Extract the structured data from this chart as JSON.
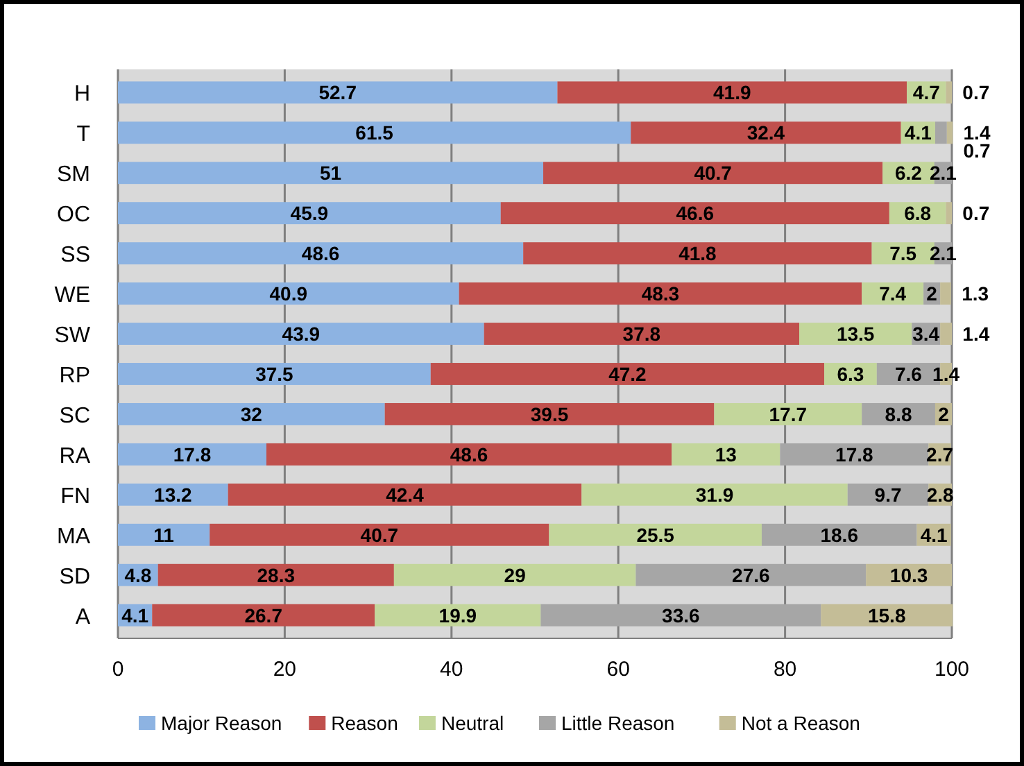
{
  "chart_data": {
    "type": "bar",
    "orientation": "horizontal",
    "stacked": true,
    "categories": [
      "H",
      "T",
      "SM",
      "OC",
      "SS",
      "WE",
      "SW",
      "RP",
      "SC",
      "RA",
      "FN",
      "MA",
      "SD",
      "A"
    ],
    "series": [
      {
        "name": "Major Reason",
        "color": "#8db3e2",
        "values": [
          52.7,
          61.5,
          51,
          45.9,
          48.6,
          40.9,
          43.9,
          37.5,
          32,
          17.8,
          13.2,
          11,
          4.8,
          4.1
        ],
        "value_labels": [
          "52.7",
          "61.5",
          "51",
          "45.9",
          "48.6",
          "40.9",
          "43.9",
          "37.5",
          "32",
          "17.8",
          "13.2",
          "11",
          "4.8",
          "4.1"
        ]
      },
      {
        "name": "Reason",
        "color": "#c0504d",
        "values": [
          41.9,
          32.4,
          40.7,
          46.6,
          41.8,
          48.3,
          37.8,
          47.2,
          39.5,
          48.6,
          42.4,
          40.7,
          28.3,
          26.7
        ],
        "value_labels": [
          "41.9",
          "32.4",
          "40.7",
          "46.6",
          "41.8",
          "48.3",
          "37.8",
          "47.2",
          "39.5",
          "48.6",
          "42.4",
          "40.7",
          "28.3",
          "26.7"
        ]
      },
      {
        "name": "Neutral",
        "color": "#c3d69b",
        "values": [
          4.7,
          4.1,
          6.2,
          6.8,
          7.5,
          7.4,
          13.5,
          6.3,
          17.7,
          13,
          31.9,
          25.5,
          29,
          19.9
        ],
        "value_labels": [
          "4.7",
          "4.1",
          "6.2",
          "6.8",
          "7.5",
          "7.4",
          "13.5",
          "6.3",
          "17.7",
          "13",
          "31.9",
          "25.5",
          "29",
          "19.9"
        ]
      },
      {
        "name": "Little Reason",
        "color": "#a6a6a6",
        "values": [
          0,
          1.4,
          2.1,
          0,
          2.1,
          2,
          3.4,
          7.6,
          8.8,
          17.8,
          9.7,
          18.6,
          27.6,
          33.6
        ],
        "value_labels": [
          null,
          "1.4",
          "2.1",
          null,
          "2.1",
          "2",
          "3.4",
          "7.6",
          "8.8",
          "17.8",
          "9.7",
          "18.6",
          "27.6",
          "33.6"
        ]
      },
      {
        "name": "Not a Reason",
        "color": "#c4bd97",
        "values": [
          0.7,
          0.7,
          0,
          0.7,
          0,
          1.3,
          1.4,
          1.4,
          2,
          2.7,
          2.8,
          4.1,
          10.3,
          15.8
        ],
        "value_labels": [
          "0.7",
          "0.7",
          null,
          "0.7",
          null,
          "1.3",
          "1.4",
          "1.4",
          "2",
          "2.7",
          "2.8",
          "4.1",
          "10.3",
          "15.8"
        ]
      }
    ],
    "xlim": [
      0,
      100
    ],
    "xticks": [
      0,
      20,
      40,
      60,
      80,
      100
    ],
    "grid": "x",
    "legend": "bottom"
  }
}
